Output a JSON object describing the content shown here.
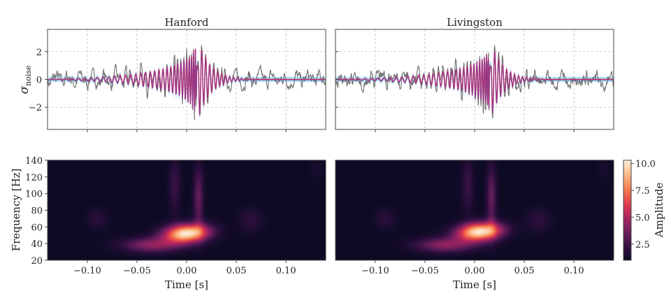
{
  "chart_data": [
    {
      "id": "hanford-strain",
      "type": "line",
      "title": "Hanford",
      "ylabel_main": "σ",
      "ylabel_sub": "noise",
      "xlim": [
        -0.14,
        0.14
      ],
      "ylim": [
        -3.6,
        3.6
      ],
      "yticks": [
        {
          "v": 2,
          "label": "2"
        },
        {
          "v": 0,
          "label": "0"
        },
        {
          "v": -2,
          "label": "−2"
        }
      ],
      "xticks": [
        -0.1,
        -0.05,
        0.0,
        0.05,
        0.1
      ],
      "grid": true,
      "t0": 0.0,
      "fit_amp": 2.9,
      "data_amp": 3.0,
      "noise_seed": 7,
      "colors": {
        "data": "#6e6e6e",
        "band": "#8fd3f4",
        "fit": "#d6336c",
        "fit2": "#6a3d9a"
      }
    },
    {
      "id": "livingston-strain",
      "type": "line",
      "title": "Livingston",
      "xlim": [
        -0.14,
        0.14
      ],
      "ylim": [
        -3.6,
        3.6
      ],
      "yticks": [],
      "xticks": [
        -0.1,
        -0.05,
        0.0,
        0.05,
        0.1
      ],
      "grid": true,
      "t0": 0.005,
      "fit_amp": 2.7,
      "data_amp": 2.9,
      "noise_seed": 19,
      "colors": {
        "data": "#6e6e6e",
        "band": "#8fd3f4",
        "fit": "#d6336c",
        "fit2": "#6a3d9a"
      }
    },
    {
      "id": "hanford-spectrogram",
      "type": "heatmap",
      "ylabel": "Frequency [Hz]",
      "xlabel": "Time [s]",
      "xlim": [
        -0.14,
        0.14
      ],
      "ylim": [
        20,
        140
      ],
      "yticks": [
        20,
        40,
        60,
        80,
        100,
        120,
        140
      ],
      "xtick_labels": [
        "−0.10",
        "−0.05",
        "0.00",
        "0.05",
        "0.10"
      ],
      "xticks": [
        -0.1,
        -0.05,
        0.0,
        0.05,
        0.1
      ],
      "peak": {
        "t": 0.0,
        "f": 52,
        "amp": 10.0
      }
    },
    {
      "id": "livingston-spectrogram",
      "type": "heatmap",
      "xlabel": "Time [s]",
      "xlim": [
        -0.14,
        0.14
      ],
      "ylim": [
        20,
        140
      ],
      "xtick_labels": [
        "−0.10",
        "−0.05",
        "0.00",
        "0.05",
        "0.10"
      ],
      "xticks": [
        -0.1,
        -0.05,
        0.0,
        0.05,
        0.1
      ],
      "peak": {
        "t": 0.005,
        "f": 54,
        "amp": 10.0
      }
    }
  ],
  "colorbar": {
    "label": "Amplitude",
    "range": [
      1.0,
      10.3
    ],
    "ticks": [
      {
        "v": 2.5,
        "label": "2.5"
      },
      {
        "v": 5.0,
        "label": "5.0"
      },
      {
        "v": 7.5,
        "label": "7.5"
      },
      {
        "v": 10.0,
        "label": "10.0"
      }
    ],
    "colormap": [
      "#0d0a24",
      "#2b0f3c",
      "#561a55",
      "#84225f",
      "#b2265d",
      "#dd3d4f",
      "#f1694a",
      "#f79a66",
      "#fbc79a",
      "#fdeedc"
    ]
  }
}
